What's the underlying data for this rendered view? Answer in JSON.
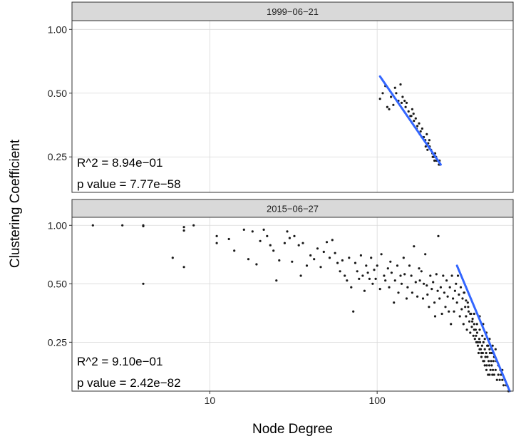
{
  "chart_data": {
    "type": "scatter",
    "xlabel": "Node Degree",
    "ylabel": "Clustering Coefficient",
    "x_scale": "log10",
    "y_scale": "log10",
    "xlim": [
      1.5,
      650
    ],
    "x_ticks": [
      {
        "value": 10,
        "label": "10"
      },
      {
        "value": 100,
        "label": "100"
      }
    ],
    "y_ticks": [
      {
        "value": 0.25,
        "label": "0.25"
      },
      {
        "value": 0.5,
        "label": "0.50"
      },
      {
        "value": 1.0,
        "label": "1.00"
      }
    ],
    "grid": true,
    "colors": {
      "points": "#1a1a1a",
      "fit_line": "#3366ff",
      "strip_fill": "#d9d9d9",
      "border": "#333333",
      "grid": "#d9d9d9"
    },
    "panels": [
      {
        "strip_label": "1999−06−21",
        "ylim": [
          0.17,
          1.1
        ],
        "annotations": [
          "R^2 = 8.94e−01",
          "p value = 7.77e−58"
        ],
        "fit_line": {
          "x": [
            104,
            240
          ],
          "y": [
            0.6,
            0.23
          ]
        },
        "points": [
          [
            104,
            0.47
          ],
          [
            108,
            0.5
          ],
          [
            112,
            0.54
          ],
          [
            118,
            0.42
          ],
          [
            121,
            0.48
          ],
          [
            125,
            0.44
          ],
          [
            130,
            0.5
          ],
          [
            134,
            0.46
          ],
          [
            138,
            0.55
          ],
          [
            142,
            0.48
          ],
          [
            146,
            0.46
          ],
          [
            150,
            0.45
          ],
          [
            154,
            0.41
          ],
          [
            158,
            0.39
          ],
          [
            162,
            0.42
          ],
          [
            166,
            0.37
          ],
          [
            170,
            0.38
          ],
          [
            174,
            0.35
          ],
          [
            178,
            0.36
          ],
          [
            182,
            0.33
          ],
          [
            186,
            0.34
          ],
          [
            190,
            0.31
          ],
          [
            194,
            0.3
          ],
          [
            198,
            0.32
          ],
          [
            202,
            0.29
          ],
          [
            206,
            0.28
          ],
          [
            210,
            0.27
          ],
          [
            214,
            0.26
          ],
          [
            218,
            0.25
          ],
          [
            222,
            0.26
          ],
          [
            226,
            0.24
          ],
          [
            230,
            0.24
          ],
          [
            234,
            0.23
          ],
          [
            238,
            0.23
          ],
          [
            165,
            0.4
          ],
          [
            172,
            0.34
          ],
          [
            185,
            0.31
          ],
          [
            195,
            0.28
          ],
          [
            205,
            0.3
          ],
          [
            215,
            0.25
          ],
          [
            225,
            0.25
          ],
          [
            236,
            0.24
          ],
          [
            128,
            0.53
          ],
          [
            148,
            0.43
          ],
          [
            160,
            0.39
          ],
          [
            180,
            0.32
          ],
          [
            200,
            0.27
          ],
          [
            220,
            0.24
          ],
          [
            115,
            0.43
          ],
          [
            140,
            0.45
          ]
        ]
      },
      {
        "strip_label": "2015−06−27",
        "ylim": [
          0.14,
          1.1
        ],
        "annotations": [
          "R^2 = 9.10e−01",
          "p value = 2.42e−82"
        ],
        "fit_line": {
          "x": [
            300,
            620
          ],
          "y": [
            0.62,
            0.14
          ]
        },
        "points": [
          [
            2,
            1.0
          ],
          [
            3,
            1.0
          ],
          [
            4,
            1.0
          ],
          [
            4,
            0.99
          ],
          [
            4,
            0.5
          ],
          [
            6,
            0.68
          ],
          [
            7,
            0.61
          ],
          [
            7,
            0.94
          ],
          [
            7,
            0.98
          ],
          [
            8,
            1.0
          ],
          [
            11,
            0.88
          ],
          [
            11,
            0.81
          ],
          [
            13,
            0.85
          ],
          [
            14,
            0.74
          ],
          [
            16,
            0.95
          ],
          [
            17,
            0.67
          ],
          [
            18,
            0.93
          ],
          [
            19,
            0.63
          ],
          [
            20,
            0.83
          ],
          [
            21,
            0.95
          ],
          [
            22,
            0.88
          ],
          [
            23,
            0.79
          ],
          [
            24,
            0.74
          ],
          [
            25,
            0.52
          ],
          [
            26,
            0.66
          ],
          [
            28,
            0.81
          ],
          [
            29,
            0.93
          ],
          [
            30,
            0.86
          ],
          [
            31,
            0.65
          ],
          [
            32,
            0.88
          ],
          [
            34,
            0.79
          ],
          [
            35,
            0.55
          ],
          [
            36,
            0.81
          ],
          [
            38,
            0.62
          ],
          [
            40,
            0.7
          ],
          [
            42,
            0.67
          ],
          [
            44,
            0.76
          ],
          [
            46,
            0.61
          ],
          [
            48,
            0.73
          ],
          [
            50,
            0.82
          ],
          [
            52,
            0.68
          ],
          [
            54,
            0.84
          ],
          [
            56,
            0.72
          ],
          [
            58,
            0.64
          ],
          [
            60,
            0.58
          ],
          [
            62,
            0.66
          ],
          [
            64,
            0.55
          ],
          [
            66,
            0.52
          ],
          [
            68,
            0.68
          ],
          [
            70,
            0.48
          ],
          [
            72,
            0.36
          ],
          [
            74,
            0.64
          ],
          [
            76,
            0.58
          ],
          [
            78,
            0.53
          ],
          [
            80,
            0.7
          ],
          [
            82,
            0.55
          ],
          [
            84,
            0.46
          ],
          [
            86,
            0.62
          ],
          [
            88,
            0.57
          ],
          [
            90,
            0.53
          ],
          [
            92,
            0.68
          ],
          [
            94,
            0.5
          ],
          [
            96,
            0.59
          ],
          [
            98,
            0.53
          ],
          [
            100,
            0.62
          ],
          [
            104,
            0.47
          ],
          [
            106,
            0.71
          ],
          [
            110,
            0.55
          ],
          [
            112,
            0.52
          ],
          [
            116,
            0.6
          ],
          [
            118,
            0.48
          ],
          [
            120,
            0.65
          ],
          [
            122,
            0.57
          ],
          [
            126,
            0.4
          ],
          [
            128,
            0.52
          ],
          [
            132,
            0.62
          ],
          [
            134,
            0.45
          ],
          [
            138,
            0.55
          ],
          [
            140,
            0.5
          ],
          [
            144,
            0.68
          ],
          [
            146,
            0.56
          ],
          [
            150,
            0.42
          ],
          [
            152,
            0.48
          ],
          [
            156,
            0.62
          ],
          [
            160,
            0.55
          ],
          [
            162,
            0.45
          ],
          [
            166,
            0.78
          ],
          [
            170,
            0.51
          ],
          [
            174,
            0.43
          ],
          [
            178,
            0.6
          ],
          [
            180,
            0.52
          ],
          [
            184,
            0.58
          ],
          [
            188,
            0.42
          ],
          [
            190,
            0.5
          ],
          [
            194,
            0.71
          ],
          [
            198,
            0.49
          ],
          [
            200,
            0.44
          ],
          [
            204,
            0.38
          ],
          [
            208,
            0.55
          ],
          [
            212,
            0.47
          ],
          [
            216,
            0.51
          ],
          [
            220,
            0.4
          ],
          [
            222,
            0.34
          ],
          [
            226,
            0.56
          ],
          [
            230,
            0.46
          ],
          [
            232,
            0.88
          ],
          [
            236,
            0.42
          ],
          [
            240,
            0.48
          ],
          [
            244,
            0.35
          ],
          [
            248,
            0.55
          ],
          [
            252,
            0.45
          ],
          [
            256,
            0.38
          ],
          [
            260,
            0.52
          ],
          [
            264,
            0.43
          ],
          [
            268,
            0.36
          ],
          [
            272,
            0.48
          ],
          [
            276,
            0.31
          ],
          [
            280,
            0.55
          ],
          [
            284,
            0.42
          ],
          [
            288,
            0.36
          ],
          [
            292,
            0.46
          ],
          [
            296,
            0.5
          ],
          [
            300,
            0.4
          ],
          [
            304,
            0.55
          ],
          [
            308,
            0.44
          ],
          [
            312,
            0.34
          ],
          [
            316,
            0.48
          ],
          [
            320,
            0.37
          ],
          [
            324,
            0.42
          ],
          [
            328,
            0.31
          ],
          [
            332,
            0.45
          ],
          [
            336,
            0.38
          ],
          [
            340,
            0.34
          ],
          [
            344,
            0.29
          ],
          [
            348,
            0.4
          ],
          [
            352,
            0.36
          ],
          [
            356,
            0.32
          ],
          [
            360,
            0.28
          ],
          [
            364,
            0.35
          ],
          [
            368,
            0.3
          ],
          [
            372,
            0.33
          ],
          [
            376,
            0.27
          ],
          [
            380,
            0.31
          ],
          [
            384,
            0.26
          ],
          [
            388,
            0.29
          ],
          [
            392,
            0.25
          ],
          [
            396,
            0.28
          ],
          [
            400,
            0.24
          ],
          [
            404,
            0.22
          ],
          [
            408,
            0.26
          ],
          [
            412,
            0.25
          ],
          [
            416,
            0.23
          ],
          [
            420,
            0.21
          ],
          [
            424,
            0.24
          ],
          [
            428,
            0.22
          ],
          [
            432,
            0.25
          ],
          [
            436,
            0.2
          ],
          [
            440,
            0.23
          ],
          [
            444,
            0.21
          ],
          [
            448,
            0.22
          ],
          [
            452,
            0.19
          ],
          [
            456,
            0.21
          ],
          [
            460,
            0.24
          ],
          [
            464,
            0.2
          ],
          [
            468,
            0.19
          ],
          [
            472,
            0.22
          ],
          [
            476,
            0.18
          ],
          [
            480,
            0.2
          ],
          [
            484,
            0.19
          ],
          [
            488,
            0.17
          ],
          [
            492,
            0.18
          ],
          [
            496,
            0.2
          ],
          [
            500,
            0.17
          ],
          [
            510,
            0.18
          ],
          [
            520,
            0.16
          ],
          [
            530,
            0.17
          ],
          [
            540,
            0.16
          ],
          [
            550,
            0.17
          ],
          [
            560,
            0.16
          ],
          [
            570,
            0.15
          ],
          [
            580,
            0.16
          ],
          [
            590,
            0.15
          ],
          [
            600,
            0.15
          ],
          [
            610,
            0.14
          ],
          [
            330,
            0.45
          ],
          [
            340,
            0.41
          ],
          [
            350,
            0.38
          ],
          [
            360,
            0.35
          ],
          [
            370,
            0.32
          ],
          [
            380,
            0.29
          ],
          [
            390,
            0.27
          ],
          [
            400,
            0.25
          ],
          [
            410,
            0.23
          ],
          [
            420,
            0.22
          ],
          [
            430,
            0.2
          ],
          [
            440,
            0.19
          ],
          [
            450,
            0.18
          ],
          [
            460,
            0.17
          ],
          [
            470,
            0.17
          ],
          [
            380,
            0.35
          ],
          [
            395,
            0.31
          ],
          [
            410,
            0.29
          ],
          [
            425,
            0.27
          ],
          [
            440,
            0.26
          ],
          [
            455,
            0.24
          ],
          [
            470,
            0.23
          ],
          [
            485,
            0.22
          ],
          [
            500,
            0.21
          ],
          [
            515,
            0.2
          ],
          [
            530,
            0.19
          ],
          [
            545,
            0.18
          ],
          [
            560,
            0.18
          ],
          [
            410,
            0.34
          ],
          [
            430,
            0.31
          ],
          [
            450,
            0.28
          ],
          [
            470,
            0.26
          ],
          [
            490,
            0.24
          ],
          [
            510,
            0.23
          ]
        ]
      }
    ]
  }
}
